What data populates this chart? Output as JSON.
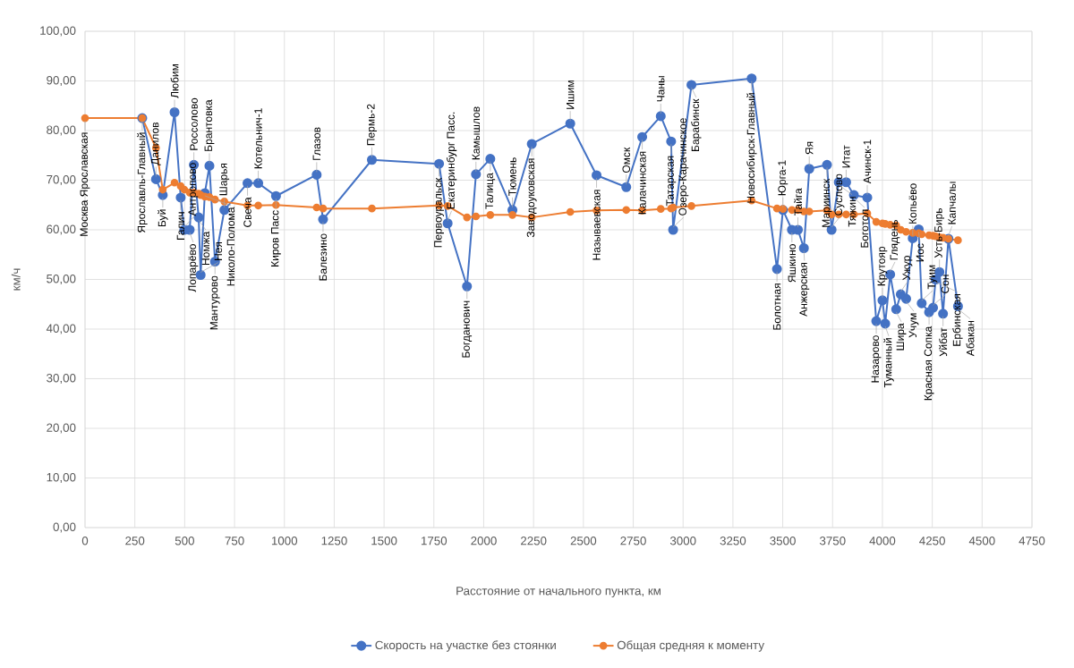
{
  "chart_data": {
    "type": "line",
    "xlabel": "Расстояние от начального пункта, км",
    "ylabel": "км/ч",
    "xlim": [
      0,
      4750
    ],
    "xticks": [
      0,
      250,
      500,
      750,
      1000,
      1250,
      1500,
      1750,
      2000,
      2250,
      2500,
      2750,
      3000,
      3250,
      3500,
      3750,
      4000,
      4250,
      4500,
      4750
    ],
    "ylim": [
      0,
      100
    ],
    "yticks": [
      {
        "value": 0,
        "label": "0,00"
      },
      {
        "value": 10,
        "label": "10,00"
      },
      {
        "value": 20,
        "label": "20,00"
      },
      {
        "value": 30,
        "label": "30,00"
      },
      {
        "value": 40,
        "label": "40,00"
      },
      {
        "value": 50,
        "label": "50,00"
      },
      {
        "value": 60,
        "label": "60,00"
      },
      {
        "value": 70,
        "label": "70,00"
      },
      {
        "value": 80,
        "label": "80,00"
      },
      {
        "value": 90,
        "label": "90,00"
      },
      {
        "value": 100,
        "label": "100,00"
      }
    ],
    "grid": true,
    "legend": "bottom",
    "marker": "circle",
    "x": [
      0,
      287,
      356,
      390,
      449,
      480,
      498,
      525,
      546,
      570,
      580,
      601,
      624,
      652,
      699,
      815,
      869,
      958,
      1162,
      1194,
      1439,
      1776,
      1819,
      1916,
      1961,
      2033,
      2144,
      2241,
      2434,
      2566,
      2715,
      2795,
      2888,
      2940,
      2950,
      3042,
      3344,
      3471,
      3501,
      3546,
      3576,
      3606,
      3633,
      3722,
      3745,
      3781,
      3818,
      3857,
      3924,
      3969,
      4000,
      4014,
      4039,
      4069,
      4092,
      4119,
      4152,
      4182,
      4197,
      4234,
      4254,
      4267,
      4286,
      4304,
      4331,
      4379
    ],
    "series": [
      {
        "name": "Скорость на участке без стоянки",
        "color": "#4472c4",
        "values": [
          null,
          82.5,
          70.2,
          67.0,
          83.7,
          66.5,
          60.0,
          60.0,
          73.1,
          62.5,
          50.9,
          67.4,
          72.9,
          53.6,
          64.0,
          69.4,
          69.4,
          66.8,
          71.1,
          62.1,
          74.1,
          73.3,
          61.3,
          48.6,
          71.2,
          74.3,
          64.0,
          77.3,
          81.4,
          71.0,
          68.6,
          78.7,
          82.9,
          77.8,
          60.0,
          89.2,
          90.5,
          52.1,
          64.0,
          60.0,
          60.0,
          56.3,
          72.3,
          73.1,
          60.0,
          69.6,
          69.6,
          67.0,
          66.5,
          41.6,
          45.8,
          41.1,
          51.0,
          44.0,
          47.0,
          46.1,
          58.3,
          60.1,
          45.2,
          43.4,
          44.3,
          50.0,
          51.5,
          43.1,
          58.2,
          44.6
        ]
      },
      {
        "name": "Общая средняя к моменту",
        "color": "#ed7d31",
        "values": [
          82.5,
          82.5,
          76.5,
          68.1,
          69.5,
          68.8,
          68.1,
          67.5,
          67.5,
          67.3,
          67.0,
          66.7,
          66.6,
          66.1,
          65.7,
          64.9,
          64.9,
          65.0,
          64.5,
          64.3,
          64.3,
          64.9,
          64.8,
          62.5,
          62.7,
          63.0,
          63.0,
          62.5,
          63.6,
          63.9,
          64.0,
          63.9,
          64.2,
          64.3,
          64.5,
          64.8,
          65.9,
          64.3,
          64.2,
          64.0,
          64.0,
          63.7,
          63.7,
          63.9,
          63.1,
          63.1,
          63.1,
          63.1,
          63.3,
          61.6,
          61.3,
          61.2,
          61.0,
          60.9,
          60.0,
          59.6,
          59.4,
          59.3,
          59.1,
          58.9,
          58.8,
          58.7,
          58.5,
          58.4,
          58.2,
          57.9
        ]
      }
    ],
    "annotations": [
      {
        "text": "Москва Ярославская",
        "x": 0,
        "y": 82.5
      },
      {
        "text": "Ярославль-Главный",
        "x": 287,
        "y": 82.5
      },
      {
        "text": "Данилов",
        "x": 356,
        "y": 70.2
      },
      {
        "text": "Буй",
        "x": 390,
        "y": 67.0
      },
      {
        "text": "Любим",
        "x": 449,
        "y": 83.7
      },
      {
        "text": "Галич",
        "x": 480,
        "y": 66.5
      },
      {
        "text": "Антропово",
        "x": 498,
        "y": 60.0
      },
      {
        "text": "Лопарёво",
        "x": 525,
        "y": 60.0
      },
      {
        "text": "Россолово",
        "x": 546,
        "y": 73.1
      },
      {
        "text": "Номжа",
        "x": 570,
        "y": 62.5
      },
      {
        "text": "Нея",
        "x": 580,
        "y": 50.9
      },
      {
        "text": "Николо-Полома",
        "x": 601,
        "y": 67.4
      },
      {
        "text": "Брантовка",
        "x": 624,
        "y": 72.9
      },
      {
        "text": "Мантурово",
        "x": 652,
        "y": 53.6
      },
      {
        "text": "Шарья",
        "x": 699,
        "y": 64.0
      },
      {
        "text": "Свеча",
        "x": 815,
        "y": 69.4
      },
      {
        "text": "Котельнич-1",
        "x": 869,
        "y": 69.4
      },
      {
        "text": "Киров Пасс",
        "x": 958,
        "y": 66.8
      },
      {
        "text": "Глазов",
        "x": 1162,
        "y": 71.1
      },
      {
        "text": "Балезино",
        "x": 1194,
        "y": 62.1
      },
      {
        "text": "Пермь-2",
        "x": 1439,
        "y": 74.1
      },
      {
        "text": "Первоуральск",
        "x": 1776,
        "y": 73.3
      },
      {
        "text": "Екатеринбург Пасс.",
        "x": 1819,
        "y": 61.3
      },
      {
        "text": "Богданович",
        "x": 1916,
        "y": 48.6
      },
      {
        "text": "Камышлов",
        "x": 1961,
        "y": 71.2
      },
      {
        "text": "Талица",
        "x": 2033,
        "y": 74.3
      },
      {
        "text": "Тюмень",
        "x": 2144,
        "y": 64.0
      },
      {
        "text": "Заводоуковская",
        "x": 2241,
        "y": 77.3
      },
      {
        "text": "Ишим",
        "x": 2434,
        "y": 81.4
      },
      {
        "text": "Называевская",
        "x": 2566,
        "y": 71.0
      },
      {
        "text": "Омск",
        "x": 2715,
        "y": 68.6
      },
      {
        "text": "Калачинская",
        "x": 2795,
        "y": 78.7
      },
      {
        "text": "Чаны",
        "x": 2888,
        "y": 82.9
      },
      {
        "text": "Татарская",
        "x": 2940,
        "y": 77.8
      },
      {
        "text": "Озеро-Карачинское",
        "x": 2950,
        "y": 60.0
      },
      {
        "text": "Барабинск",
        "x": 3042,
        "y": 89.2
      },
      {
        "text": "Новосибирск-Главный",
        "x": 3344,
        "y": 90.5
      },
      {
        "text": "Болотная",
        "x": 3471,
        "y": 52.1
      },
      {
        "text": "Юрга-1",
        "x": 3501,
        "y": 64.0
      },
      {
        "text": "Яшкино",
        "x": 3546,
        "y": 60.0
      },
      {
        "text": "Тайга",
        "x": 3576,
        "y": 60.0
      },
      {
        "text": "Анжерская",
        "x": 3606,
        "y": 56.3
      },
      {
        "text": "Яя",
        "x": 3633,
        "y": 72.3
      },
      {
        "text": "Мариинск",
        "x": 3722,
        "y": 73.1
      },
      {
        "text": "Суслово",
        "x": 3745,
        "y": 60.0
      },
      {
        "text": "Тяжин",
        "x": 3781,
        "y": 69.6
      },
      {
        "text": "Итат",
        "x": 3818,
        "y": 69.6
      },
      {
        "text": "Боготол",
        "x": 3857,
        "y": 67.0
      },
      {
        "text": "Ачинск-1",
        "x": 3924,
        "y": 66.5
      },
      {
        "text": "Назарово",
        "x": 3969,
        "y": 41.6
      },
      {
        "text": "Крутояр",
        "x": 4000,
        "y": 45.8
      },
      {
        "text": "Туманный",
        "x": 4014,
        "y": 41.1
      },
      {
        "text": "Глядень",
        "x": 4039,
        "y": 51.0
      },
      {
        "text": "Шира",
        "x": 4069,
        "y": 44.0
      },
      {
        "text": "Ужур",
        "x": 4092,
        "y": 47.0
      },
      {
        "text": "Учум",
        "x": 4119,
        "y": 46.1
      },
      {
        "text": "Копьёво",
        "x": 4152,
        "y": 58.3
      },
      {
        "text": "Иос",
        "x": 4182,
        "y": 60.1
      },
      {
        "text": "Туим",
        "x": 4197,
        "y": 45.2
      },
      {
        "text": "Красная Сопка",
        "x": 4234,
        "y": 43.4
      },
      {
        "text": "Сон",
        "x": 4254,
        "y": 44.3
      },
      {
        "text": "Ербинская",
        "x": 4267,
        "y": 50.0
      },
      {
        "text": "Усть-Бирь",
        "x": 4286,
        "y": 51.5
      },
      {
        "text": "Уйбат",
        "x": 4304,
        "y": 43.1
      },
      {
        "text": "Капчалы",
        "x": 4331,
        "y": 58.2
      },
      {
        "text": "Абакан",
        "x": 4379,
        "y": 44.6
      }
    ]
  }
}
